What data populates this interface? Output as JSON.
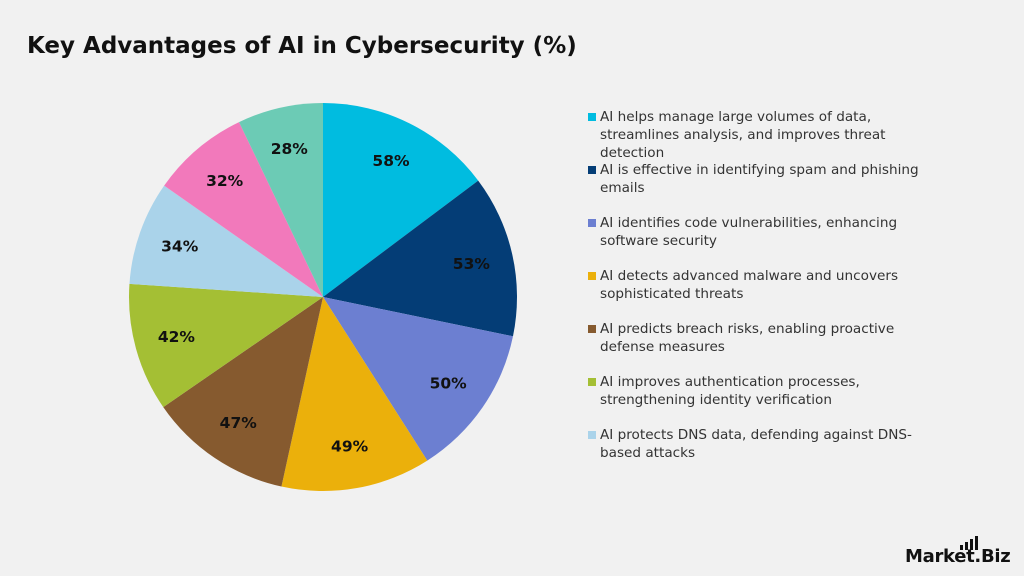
{
  "title": "Key Advantages of AI in Cybersecurity (%)",
  "brand": {
    "name": "Market.Biz",
    "logo_icon": "signal-bars-icon"
  },
  "chart_data": {
    "type": "pie",
    "title": "Key Advantages of AI in Cybersecurity (%)",
    "start": "12 o'clock",
    "direction": "clockwise",
    "slices": [
      {
        "label": "AI helps manage large volumes of data, streamlines analysis, and improves threat detection",
        "value": 58,
        "display": "58%",
        "color": "#00bce0"
      },
      {
        "label": "AI is effective in identifying spam and phishing emails",
        "value": 53,
        "display": "53%",
        "color": "#043d76"
      },
      {
        "label": "AI identifies code vulnerabilities, enhancing software security",
        "value": 50,
        "display": "50%",
        "color": "#6c7fd1"
      },
      {
        "label": "AI detects advanced malware and uncovers sophisticated threats",
        "value": 49,
        "display": "49%",
        "color": "#ebb00b"
      },
      {
        "label": "AI predicts breach risks, enabling proactive defense measures",
        "value": 47,
        "display": "47%",
        "color": "#865a2f"
      },
      {
        "label": "AI improves authentication processes, strengthening identity verification",
        "value": 42,
        "display": "42%",
        "color": "#a4bf34"
      },
      {
        "label": "AI protects DNS data, defending against DNS-based attacks",
        "value": 34,
        "display": "34%",
        "color": "#aad3ea"
      },
      {
        "value": 32,
        "display": "32%",
        "color": "#f279bb"
      },
      {
        "value": 28,
        "display": "28%",
        "color": "#6ccbb5"
      }
    ],
    "legend_entries": [
      0,
      1,
      2,
      3,
      4,
      5,
      6
    ],
    "legend_position": "right"
  }
}
